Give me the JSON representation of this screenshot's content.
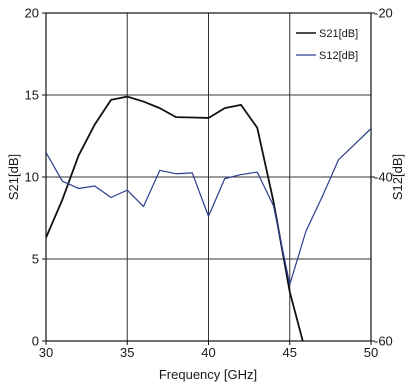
{
  "chart_data": {
    "type": "line",
    "xlabel": "Frequency [GHz]",
    "ylabel_left": "S21[dB]",
    "ylabel_right": "S12[dB]",
    "xlim": [
      30,
      50
    ],
    "ylim_left": [
      0,
      20
    ],
    "ylim_right": [
      -60,
      -20
    ],
    "x_ticks": [
      "30",
      "35",
      "40",
      "45",
      "50"
    ],
    "y_ticks_left": [
      "0",
      "5",
      "10",
      "15",
      "20"
    ],
    "y_ticks_right": [
      "-60",
      "-40",
      "-20"
    ],
    "grid": true,
    "legend_position": "top-right",
    "series": [
      {
        "name": "S21[dB]",
        "axis": "left",
        "color": "#111111",
        "x": [
          30,
          31,
          32,
          33,
          34,
          35,
          36,
          37,
          38,
          39,
          40,
          41,
          42,
          43,
          44,
          45,
          45.8
        ],
        "y": [
          6.3,
          8.6,
          11.3,
          13.2,
          14.7,
          14.9,
          14.6,
          14.2,
          13.65,
          13.63,
          13.6,
          14.2,
          14.4,
          13.0,
          8.5,
          3.0,
          0
        ]
      },
      {
        "name": "S12[dB]",
        "axis": "right",
        "color": "#2a3d8f",
        "x": [
          30,
          31,
          32,
          33,
          34,
          35,
          36,
          37,
          38,
          39,
          40,
          41,
          42,
          43,
          44,
          45,
          46,
          47,
          48,
          49,
          50
        ],
        "y": [
          -37,
          -40.5,
          -41.4,
          -41.1,
          -42.5,
          -41.6,
          -43.6,
          -39.2,
          -39.6,
          -39.5,
          -44.8,
          -40.2,
          -39.7,
          -39.4,
          -43.5,
          -53.1,
          -46.6,
          -42.4,
          -37.9,
          -36.0,
          -34.1
        ]
      }
    ]
  }
}
